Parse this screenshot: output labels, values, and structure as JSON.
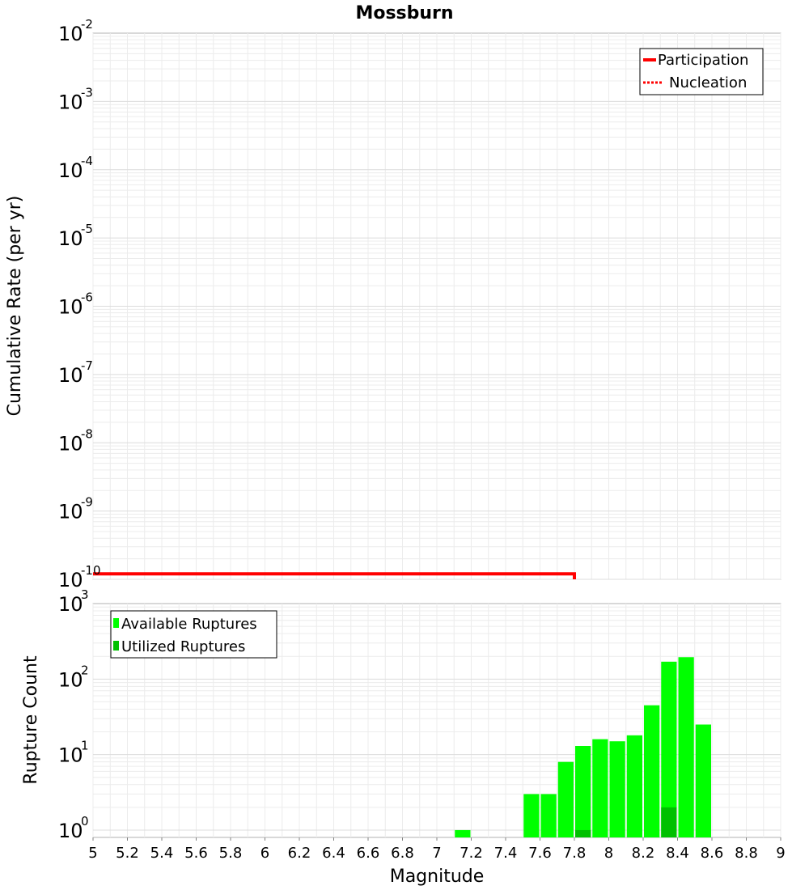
{
  "chart_data": [
    {
      "type": "line",
      "title": "Mossburn",
      "xlabel": "Magnitude",
      "ylabel": "Cumulative Rate (per yr)",
      "yscale": "log",
      "xlim": [
        5,
        9
      ],
      "ylim": [
        1e-10,
        0.01
      ],
      "y_tick_bases": [
        "10",
        "10",
        "10",
        "10",
        "10",
        "10",
        "10",
        "10",
        "10"
      ],
      "y_tick_exponents": [
        "-10",
        "-9",
        "-8",
        "-7",
        "-6",
        "-5",
        "-4",
        "-3",
        "-2"
      ],
      "series": [
        {
          "name": "Participation",
          "style": "solid",
          "color": "#ff0000",
          "x": [
            5.0,
            7.8,
            7.8
          ],
          "y": [
            1.2e-10,
            1.2e-10,
            1e-10
          ]
        },
        {
          "name": "Nucleation",
          "style": "dotted",
          "color": "#ff0000",
          "x": [],
          "y": []
        }
      ],
      "legend": {
        "position": "top-right",
        "entries": [
          "Participation",
          "Nucleation"
        ]
      }
    },
    {
      "type": "bar",
      "xlabel": "Magnitude",
      "ylabel": "Rupture Count",
      "yscale": "log",
      "xlim": [
        5,
        9
      ],
      "ylim": [
        0.8,
        1000
      ],
      "y_tick_bases": [
        "10",
        "10",
        "10",
        "10"
      ],
      "y_tick_exponents": [
        "0",
        "1",
        "2",
        "3"
      ],
      "x_ticks": [
        "5",
        "5.2",
        "5.4",
        "5.6",
        "5.8",
        "6",
        "6.2",
        "6.4",
        "6.6",
        "6.8",
        "7",
        "7.2",
        "7.4",
        "7.6",
        "7.8",
        "8",
        "8.2",
        "8.4",
        "8.6",
        "8.8",
        "9"
      ],
      "bin_width": 0.1,
      "series": [
        {
          "name": "Available Ruptures",
          "color": "#00ff00",
          "x": [
            7.15,
            7.55,
            7.65,
            7.75,
            7.85,
            7.95,
            8.05,
            8.15,
            8.25,
            8.35,
            8.45,
            8.55
          ],
          "values": [
            1,
            3,
            3,
            8,
            13,
            16,
            15,
            18,
            45,
            170,
            195,
            25
          ]
        },
        {
          "name": "Utilized Ruptures",
          "color": "#00c000",
          "x": [
            7.85,
            8.35
          ],
          "values": [
            1,
            2
          ]
        }
      ],
      "legend": {
        "position": "top-left",
        "entries": [
          "Available Ruptures",
          "Utilized Ruptures"
        ]
      }
    }
  ]
}
